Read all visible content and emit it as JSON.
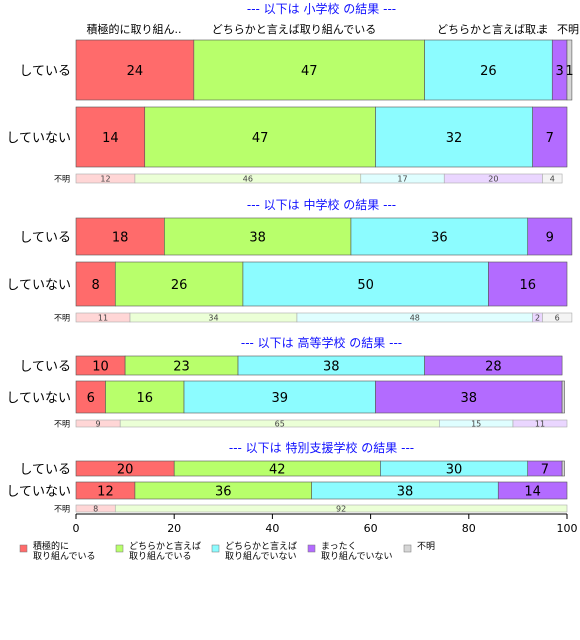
{
  "chart_data": {
    "type": "bar",
    "orientation": "horizontal",
    "stacked": true,
    "xlim": [
      0,
      100
    ],
    "xticks": [
      0,
      20,
      40,
      60,
      80,
      100
    ],
    "colors": [
      "#ff6b6b",
      "#b8ff6b",
      "#8cfcff",
      "#b36bff",
      "#d6d6d6"
    ],
    "column_headers": [
      "積極的に取り組ん..",
      "どちらかと言えば取り組んでいる",
      "どちらかと言えば取..",
      "ま",
      "不明"
    ],
    "legend": [
      {
        "label_line1": "積極的に",
        "label_line2": "取り組んでいる"
      },
      {
        "label_line1": "どちらかと言えば",
        "label_line2": "取り組んでいる"
      },
      {
        "label_line1": "どちらかと言えば",
        "label_line2": "取り組んでいない"
      },
      {
        "label_line1": "まったく",
        "label_line2": "取り組んでいない"
      },
      {
        "label_line1": "不明",
        "label_line2": ""
      }
    ],
    "panels": [
      {
        "title": "--- 以下は 小学校 の結果 ---",
        "rows": [
          {
            "label": "している",
            "values": [
              24,
              47,
              26,
              3,
              1
            ],
            "value_labels": [
              "24",
              "47",
              "26",
              "3",
              "1"
            ],
            "kind": "main"
          },
          {
            "label": "していない",
            "values": [
              14,
              47,
              32,
              7,
              0
            ],
            "value_labels": [
              "14",
              "47",
              "32",
              "7",
              ""
            ],
            "kind": "main"
          },
          {
            "label": "不明",
            "values": [
              12,
              46,
              17,
              20,
              4
            ],
            "value_labels": [
              "12",
              "46",
              "17",
              "20",
              "4"
            ],
            "kind": "thin"
          }
        ]
      },
      {
        "title": "--- 以下は 中学校 の結果 ---",
        "rows": [
          {
            "label": "している",
            "values": [
              18,
              38,
              36,
              9,
              0
            ],
            "value_labels": [
              "18",
              "38",
              "36",
              "9",
              ""
            ],
            "kind": "main"
          },
          {
            "label": "していない",
            "values": [
              8,
              26,
              50,
              16,
              0
            ],
            "value_labels": [
              "8",
              "26",
              "50",
              "16",
              ""
            ],
            "kind": "main"
          },
          {
            "label": "不明",
            "values": [
              11,
              34,
              48,
              2,
              6
            ],
            "value_labels": [
              "11",
              "34",
              "48",
              "2",
              "6"
            ],
            "kind": "thin"
          }
        ]
      },
      {
        "title": "--- 以下は 高等学校 の結果 ---",
        "rows": [
          {
            "label": "している",
            "values": [
              10,
              23,
              38,
              28,
              0
            ],
            "value_labels": [
              "10",
              "23",
              "38",
              "28",
              ""
            ],
            "kind": "main"
          },
          {
            "label": "していない",
            "values": [
              6,
              16,
              39,
              38,
              0.5
            ],
            "value_labels": [
              "6",
              "16",
              "39",
              "38",
              ""
            ],
            "kind": "main"
          },
          {
            "label": "不明",
            "values": [
              9,
              65,
              15,
              11,
              0
            ],
            "value_labels": [
              "9",
              "65",
              "15",
              "11",
              ""
            ],
            "kind": "thin"
          }
        ]
      },
      {
        "title": "--- 以下は 特別支援学校 の結果 ---",
        "rows": [
          {
            "label": "している",
            "values": [
              20,
              42,
              30,
              7,
              0.5
            ],
            "value_labels": [
              "20",
              "42",
              "30",
              "7",
              ""
            ],
            "kind": "main"
          },
          {
            "label": "していない",
            "values": [
              12,
              36,
              38,
              14,
              0
            ],
            "value_labels": [
              "12",
              "36",
              "38",
              "14",
              ""
            ],
            "kind": "main"
          },
          {
            "label": "不明",
            "values": [
              8,
              92,
              0,
              0,
              0
            ],
            "value_labels": [
              "8",
              "92",
              "",
              "",
              ""
            ],
            "kind": "thin"
          }
        ]
      }
    ]
  }
}
